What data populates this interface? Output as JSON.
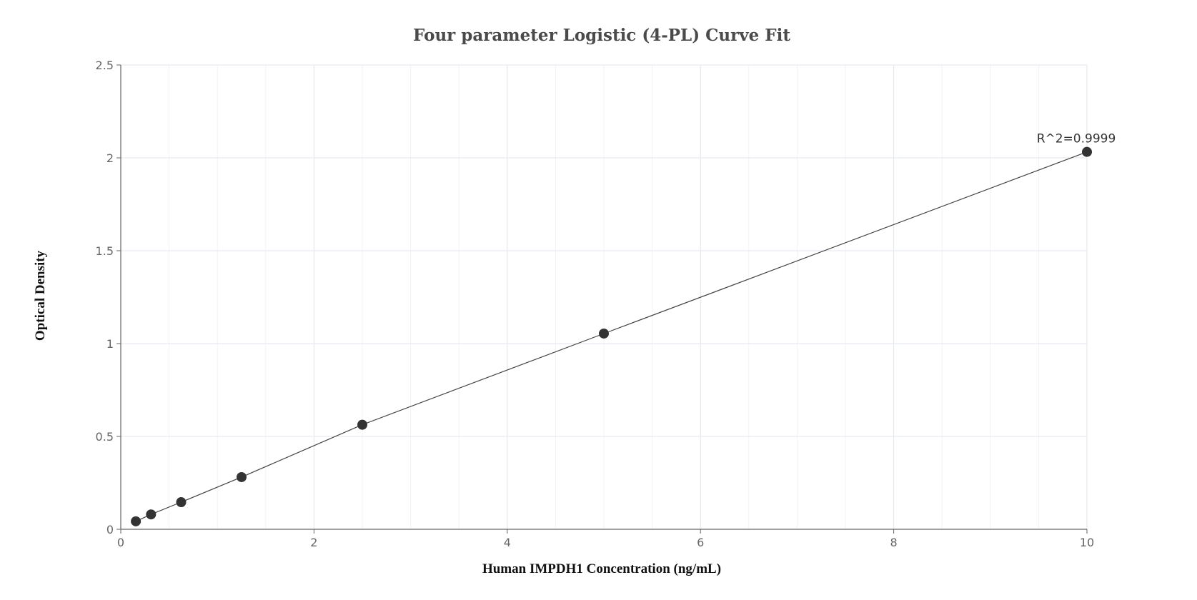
{
  "chart_data": {
    "type": "scatter",
    "title": "Four parameter Logistic (4-PL) Curve Fit",
    "xlabel": "Human IMPDH1 Concentration (ng/mL)",
    "ylabel": "Optical Density",
    "xlim": [
      0,
      10
    ],
    "ylim": [
      0,
      2.5
    ],
    "x_ticks": [
      0,
      2,
      4,
      6,
      8,
      10
    ],
    "y_ticks": [
      0,
      0.5,
      1,
      1.5,
      2,
      2.5
    ],
    "x_tick_labels": [
      "0",
      "2",
      "4",
      "6",
      "8",
      "10"
    ],
    "y_tick_labels": [
      "0",
      "0.5",
      "1",
      "1.5",
      "2",
      "2.5"
    ],
    "grid": true,
    "series": [
      {
        "x": [
          0.156,
          0.313,
          0.625,
          1.25,
          2.5,
          5,
          10
        ],
        "y": [
          0.043,
          0.08,
          0.146,
          0.281,
          0.563,
          1.054,
          2.032
        ],
        "fit": "4-PL"
      }
    ],
    "annotations": [
      {
        "text": "R^2=0.9999",
        "x": 10,
        "y": 2.032
      }
    ]
  },
  "colors": {
    "point": "#333333",
    "curve": "#444444",
    "grid_major": "#e3e6ec",
    "grid_minor": "#f2f3f6",
    "axis": "#666666"
  }
}
